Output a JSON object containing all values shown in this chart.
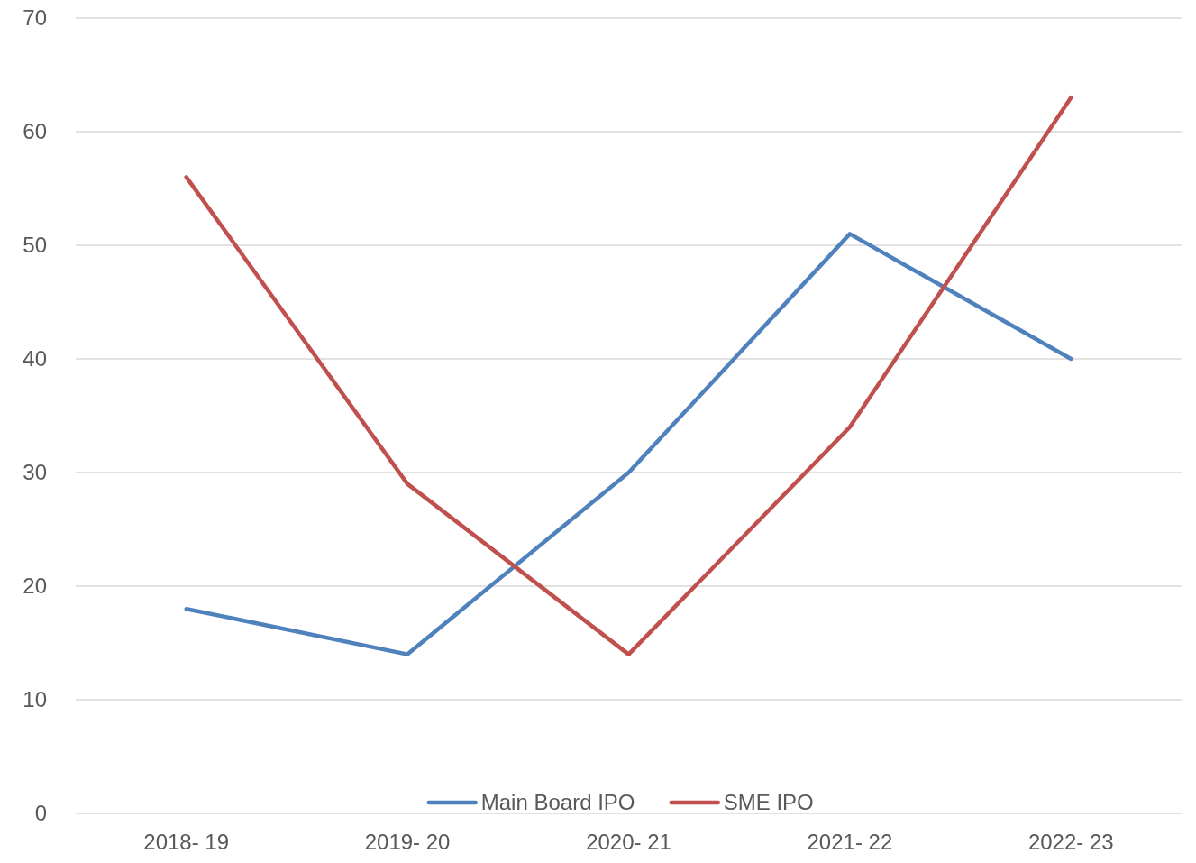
{
  "chart_data": {
    "type": "line",
    "categories": [
      "2018- 19",
      "2019- 20",
      "2020- 21",
      "2021- 22",
      "2022- 23"
    ],
    "series": [
      {
        "name": "Main Board IPO",
        "color": "#4f81bd",
        "values": [
          18,
          14,
          30,
          51,
          40
        ]
      },
      {
        "name": "SME IPO",
        "color": "#c0504d",
        "values": [
          56,
          29,
          14,
          34,
          63
        ]
      }
    ],
    "ylim": [
      0,
      70
    ],
    "yticks": [
      0,
      10,
      20,
      30,
      40,
      50,
      60,
      70
    ],
    "grid": "y",
    "legend": "bottom",
    "marker": "none",
    "line_style": "solid"
  }
}
